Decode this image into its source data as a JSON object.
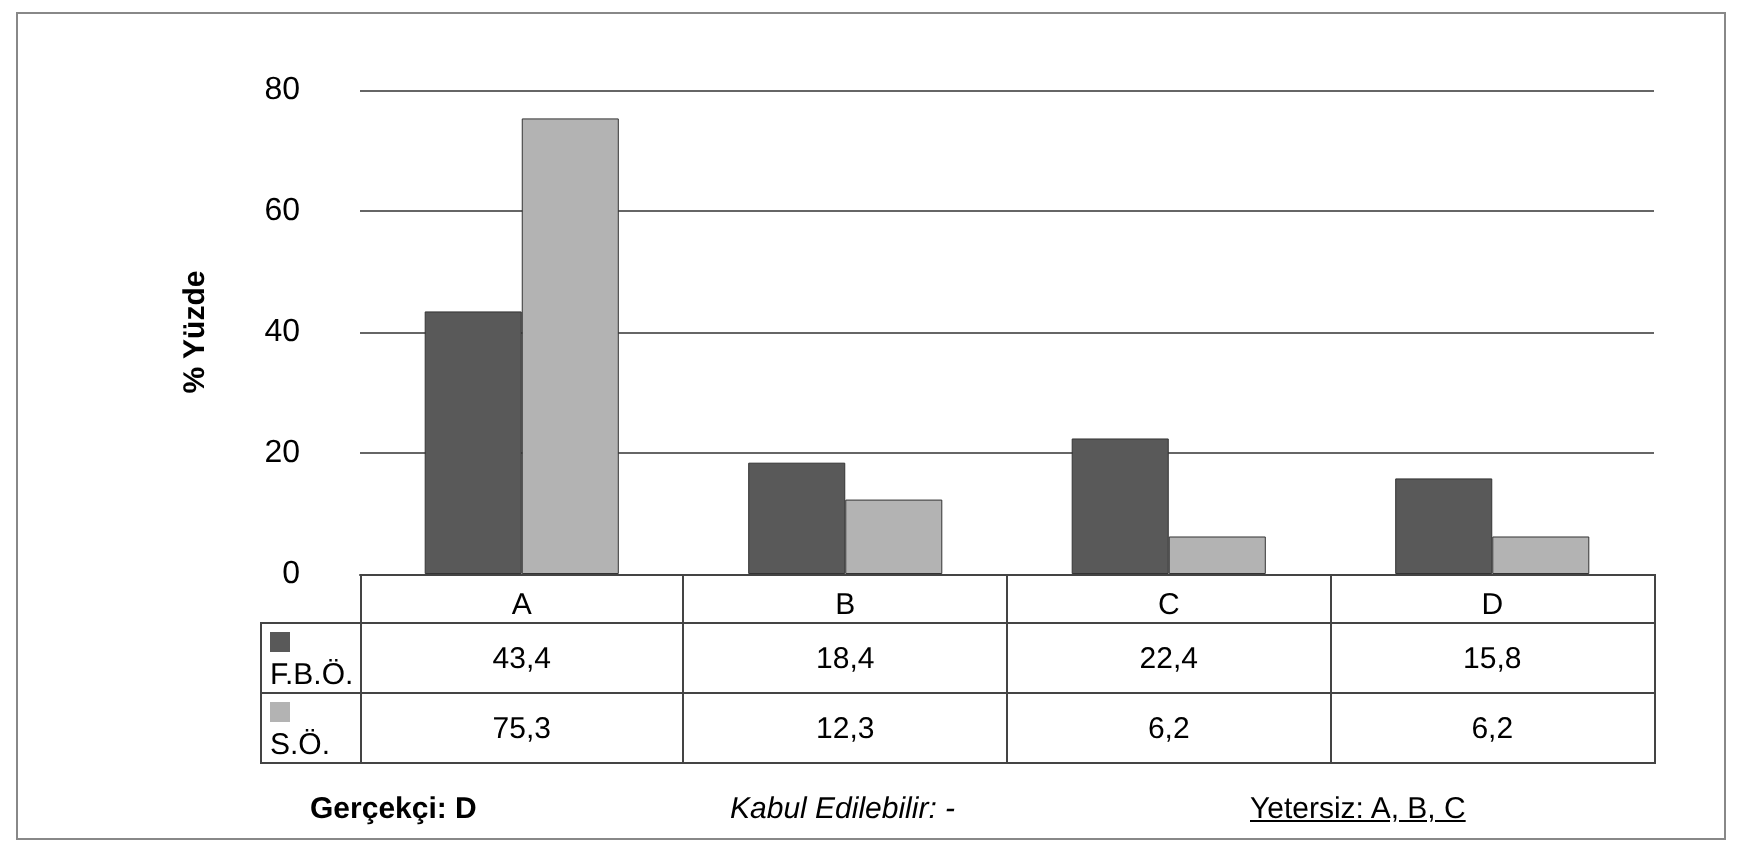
{
  "chart_data": {
    "type": "bar",
    "ylabel": "% Yüzde",
    "categories": [
      "A",
      "B",
      "C",
      "D"
    ],
    "series": [
      {
        "name": "F.B.Ö.",
        "color": "#595959",
        "values": [
          43.4,
          18.4,
          22.4,
          15.8
        ],
        "value_labels": [
          "43,4",
          "18,4",
          "22,4",
          "15,8"
        ]
      },
      {
        "name": "S.Ö.",
        "color": "#b3b3b3",
        "values": [
          75.3,
          12.3,
          6.2,
          6.2
        ],
        "value_labels": [
          "75,3",
          "12,3",
          "6,2",
          "6,2"
        ]
      }
    ],
    "ylim": [
      0,
      80
    ],
    "yticks": [
      0,
      20,
      40,
      60,
      80
    ],
    "grid": "y",
    "legend": "bottom",
    "annotations": [
      "Gerçekçi: D",
      "Kabul Edilebilir: -",
      "Yetersiz: A, B, C"
    ]
  }
}
